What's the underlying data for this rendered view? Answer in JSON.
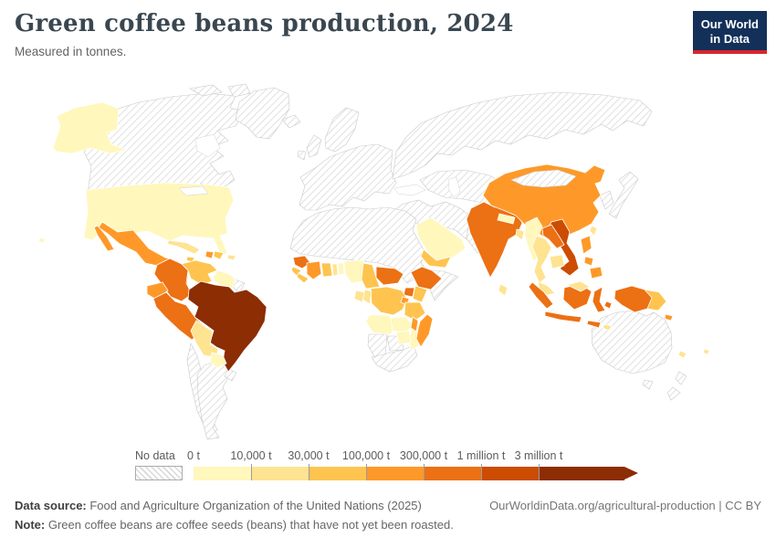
{
  "header": {
    "title": "Green coffee beans production, 2024",
    "subtitle": "Measured in tonnes.",
    "logo": {
      "line1": "Our World",
      "line2": "in Data",
      "bg": "#133059",
      "accent": "#D8262C"
    }
  },
  "legend": {
    "no_data_label": "No data",
    "tick_labels": [
      "0 t",
      "10,000 t",
      "30,000 t",
      "100,000 t",
      "300,000 t",
      "1 million t",
      "3 million t"
    ]
  },
  "footer": {
    "source_label": "Data source:",
    "source_text": " Food and Agriculture Organization of the United Nations (2025)",
    "note_label": "Note:",
    "note_text": " Green coffee beans are coffee seeds (beans) that have not yet been roasted.",
    "link_text": "OurWorldinData.org/agricultural-production | CC BY"
  },
  "chart_data": {
    "type": "choropleth_map",
    "title": "Green coffee beans production, 2024",
    "unit": "tonnes",
    "year": 2024,
    "legend_position": "bottom",
    "bins": [
      {
        "label": "0 t – 10,000 t",
        "color": "#FFF7BC"
      },
      {
        "label": "10,000 t – 30,000 t",
        "color": "#FEE391"
      },
      {
        "label": "30,000 t – 100,000 t",
        "color": "#FEC44F"
      },
      {
        "label": "100,000 t – 300,000 t",
        "color": "#FE9929"
      },
      {
        "label": "300,000 t – 1 million t",
        "color": "#EC7014"
      },
      {
        "label": "1 million t – 3 million t",
        "color": "#CC4C02"
      },
      {
        "label": "more than 3 million t",
        "color": "#8C2D04"
      }
    ],
    "no_data": {
      "label": "No data",
      "regions": [
        "Canada",
        "Greenland",
        "Europe",
        "Russia",
        "Central Asia",
        "Middle East",
        "Pakistan",
        "Afghanistan",
        "Mongolia",
        "Korea",
        "Japan",
        "North Africa",
        "Sudan",
        "Somalia",
        "Namibia",
        "Botswana",
        "South Africa",
        "French Guiana",
        "Chile",
        "Argentina",
        "Uruguay",
        "Australia",
        "New Zealand"
      ]
    },
    "countries": {
      "United States": 0,
      "Mexico": 3,
      "Guatemala": 3,
      "Honduras": 4,
      "Nicaragua": 3,
      "Costa Rica": 3,
      "Panama": 2,
      "Cuba": 1,
      "Jamaica": 2,
      "Haiti": 3,
      "Dominican Republic": 2,
      "Puerto Rico": 1,
      "Colombia": 4,
      "Venezuela": 2,
      "Guyana": 0,
      "Ecuador": 3,
      "Peru": 4,
      "Brazil": 6,
      "Bolivia": 1,
      "Paraguay": 0,
      "Guinea": 4,
      "Sierra Leone": 2,
      "Liberia": 2,
      "Cote d'Ivoire": 3,
      "Ghana": 2,
      "Togo": 1,
      "Benin": 0,
      "Nigeria": 0,
      "Cameroon": 2,
      "Central African Republic": 4,
      "Ethiopia": 4,
      "Uganda": 4,
      "Kenya": 2,
      "Rwanda": 3,
      "DR Congo": 2,
      "Congo": 1,
      "Gabon": 1,
      "Tanzania": 2,
      "Angola": 0,
      "Zambia": 0,
      "Malawi": 3,
      "Mozambique": 0,
      "Zimbabwe": 0,
      "Madagascar": 3,
      "Saudi Arabia": 0,
      "Yemen": 2,
      "India": 4,
      "Sri Lanka": 1,
      "Nepal": 0,
      "Bangladesh": 1,
      "China": 3,
      "Taiwan": 1,
      "Myanmar": 0,
      "Laos": 4,
      "Vietnam": 5,
      "Thailand": 1,
      "Cambodia": 1,
      "Malaysia": 1,
      "Indonesia": 4,
      "Papua New Guinea": 2,
      "Philippines": 3,
      "Timor": 1,
      "Solomon Islands": 3,
      "New Caledonia": 1,
      "Fiji": 1
    }
  },
  "map": {
    "regions": {
      "usa": "United States",
      "alaska": "United States",
      "hawaii": "United States",
      "mexico": "Mexico",
      "baja": "Mexico",
      "guatemala": "Guatemala",
      "honduras": "Honduras",
      "nicaragua": "Nicaragua",
      "costa-rica": "Costa Rica",
      "panama": "Panama",
      "cuba": "Cuba",
      "jamaica": "Jamaica",
      "haiti": "Haiti",
      "dominican-republic": "Dominican Republic",
      "puerto-rico": "Puerto Rico",
      "colombia": "Colombia",
      "venezuela": "Venezuela",
      "guyana": "Guyana",
      "ecuador": "Ecuador",
      "peru": "Peru",
      "brazil": "Brazil",
      "bolivia": "Bolivia",
      "paraguay": "Paraguay",
      "guinea": "Guinea",
      "sierra-leone": "Sierra Leone",
      "liberia": "Liberia",
      "ivory-coast": "Cote d'Ivoire",
      "ghana": "Ghana",
      "togo": "Togo",
      "benin": "Benin",
      "nigeria": "Nigeria",
      "cameroon": "Cameroon",
      "car": "Central African Republic",
      "ethiopia": "Ethiopia",
      "uganda": "Uganda",
      "kenya": "Kenya",
      "rwanda": "Rwanda",
      "drc": "DR Congo",
      "congo": "Congo",
      "gabon": "Gabon",
      "tanzania": "Tanzania",
      "angola": "Angola",
      "zambia": "Zambia",
      "malawi": "Malawi",
      "mozambique": "Mozambique",
      "zimbabwe": "Zimbabwe",
      "madagascar": "Madagascar",
      "saudi-arabia": "Saudi Arabia",
      "yemen": "Yemen",
      "india": "India",
      "sri-lanka": "Sri Lanka",
      "nepal": "Nepal",
      "bangladesh": "Bangladesh",
      "china": "China",
      "taiwan": "Taiwan",
      "myanmar": "Myanmar",
      "laos": "Laos",
      "vietnam": "Vietnam",
      "thailand": "Thailand",
      "cambodia": "Cambodia",
      "malaysia": "Malaysia",
      "malaysia-borneo": "Malaysia",
      "sumatra": "Indonesia",
      "java": "Indonesia",
      "borneo": "Indonesia",
      "sulawesi": "Indonesia",
      "lesser-sunda": "Indonesia",
      "moluccas": "Indonesia",
      "papua": "Indonesia",
      "png": "Papua New Guinea",
      "luzon": "Philippines",
      "visayas": "Philippines",
      "mindanao": "Philippines",
      "timor": "Timor",
      "solomon": "Solomon Islands",
      "new-caledonia": "New Caledonia",
      "fiji": "Fiji"
    }
  }
}
